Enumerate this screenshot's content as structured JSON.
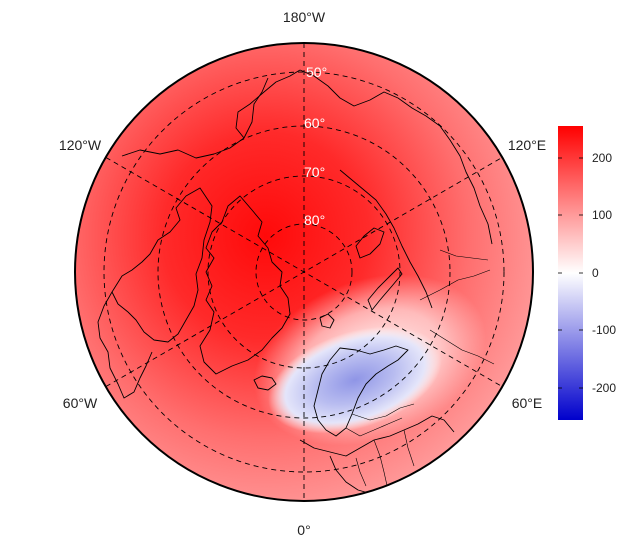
{
  "longitude_labels": {
    "top": "180°W",
    "upper_left": "120°W",
    "upper_right": "120°E",
    "lower_left": "60°W",
    "lower_right": "60°E",
    "bottom": "0°"
  },
  "latitude_labels": [
    "50°",
    "60°",
    "70°",
    "80°"
  ],
  "colorbar": {
    "ticks": [
      "200",
      "100",
      "0",
      "-100",
      "-200"
    ],
    "range": [
      -250,
      250
    ],
    "colors": {
      "high": "#ff0000",
      "mid": "#ffffff",
      "low": "#0000cc"
    }
  },
  "colors": {
    "grid": "#000000",
    "outline": "#000000"
  }
}
